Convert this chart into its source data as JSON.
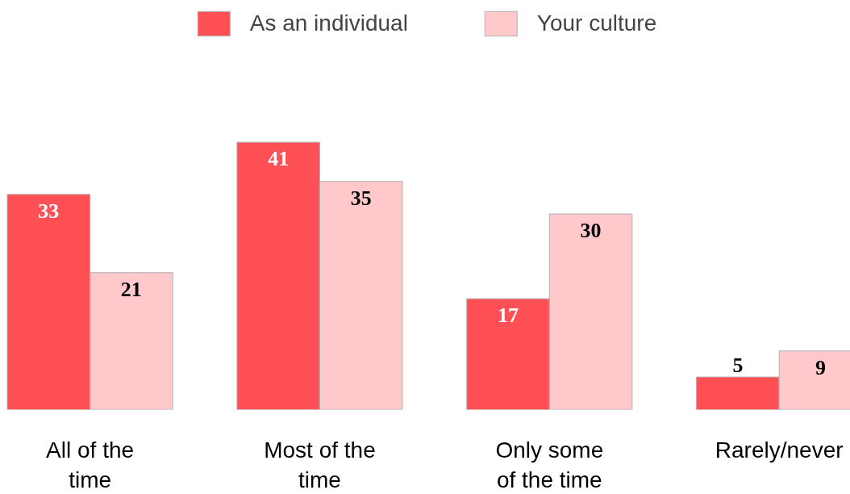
{
  "chart_data": {
    "type": "bar",
    "categories": [
      "All of the time",
      "Most of the time",
      "Only some of the time",
      "Rarely/never"
    ],
    "series": [
      {
        "name": "As an individual",
        "color": "#ff5055",
        "values": [
          33,
          41,
          17,
          5
        ]
      },
      {
        "name": "Your culture",
        "color": "#ffc8cb",
        "values": [
          21,
          35,
          30,
          9
        ]
      }
    ],
    "data_labels": true,
    "legend": "top",
    "grid": false,
    "tick_labels": "x"
  }
}
